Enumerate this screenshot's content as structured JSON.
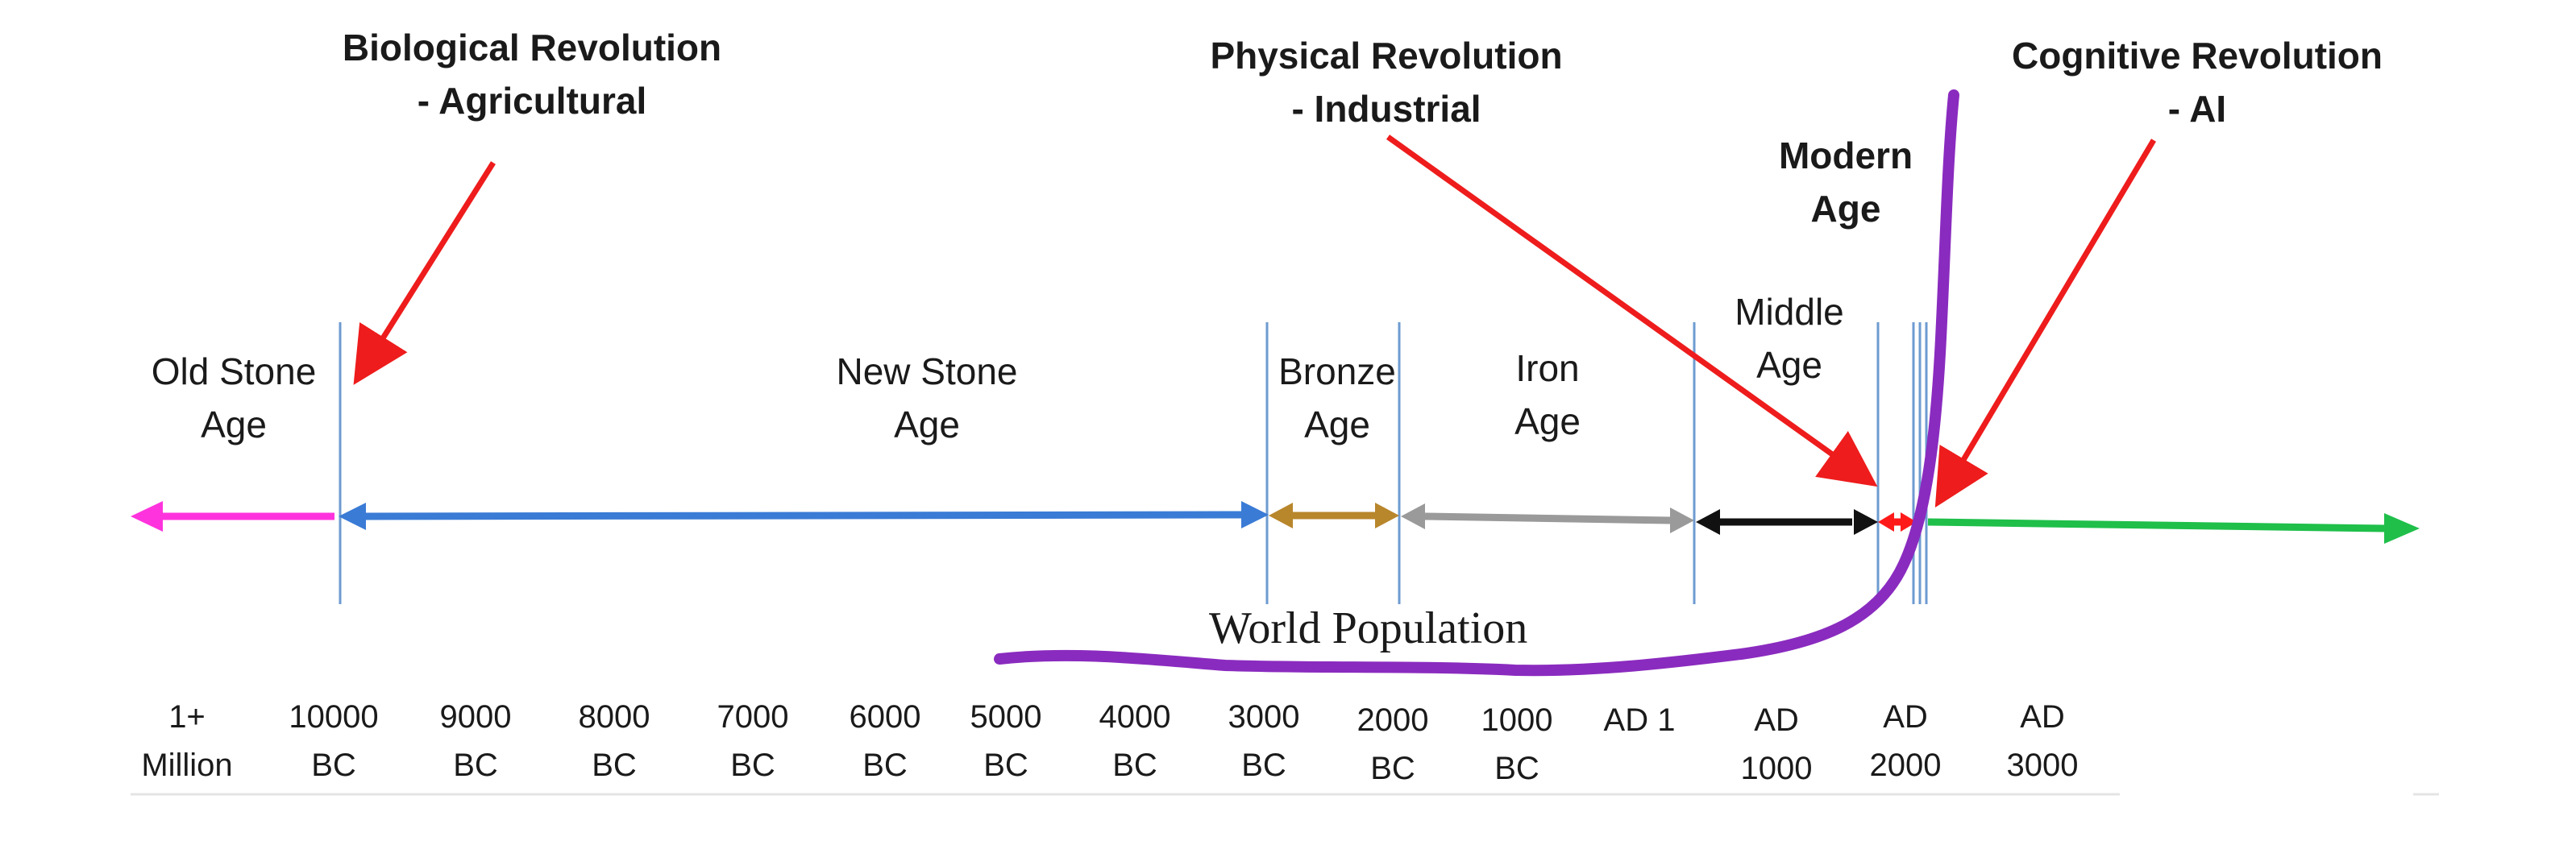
{
  "revolutions": {
    "biological": {
      "line1": "Biological Revolution",
      "line2": "- Agricultural"
    },
    "physical": {
      "line1": "Physical Revolution",
      "line2": "- Industrial"
    },
    "cognitive": {
      "line1": "Cognitive Revolution",
      "line2": "- AI"
    }
  },
  "ages": {
    "old_stone": {
      "line1": "Old Stone",
      "line2": "Age"
    },
    "new_stone": {
      "line1": "New Stone",
      "line2": "Age"
    },
    "bronze": {
      "line1": "Bronze",
      "line2": "Age"
    },
    "iron": {
      "line1": "Iron",
      "line2": "Age"
    },
    "middle": {
      "line1": "Middle",
      "line2": "Age"
    },
    "modern": {
      "line1": "Modern",
      "line2": "Age"
    }
  },
  "population_label": "World Population",
  "ticks": [
    {
      "line1": "1+",
      "line2": "Million"
    },
    {
      "line1": "10000",
      "line2": "BC"
    },
    {
      "line1": "9000",
      "line2": "BC"
    },
    {
      "line1": "8000",
      "line2": "BC"
    },
    {
      "line1": "7000",
      "line2": "BC"
    },
    {
      "line1": "6000",
      "line2": "BC"
    },
    {
      "line1": "5000",
      "line2": "BC"
    },
    {
      "line1": "4000",
      "line2": "BC"
    },
    {
      "line1": "3000",
      "line2": "BC"
    },
    {
      "line1": "2000",
      "line2": "BC"
    },
    {
      "line1": "1000",
      "line2": "BC"
    },
    {
      "line1": "AD 1",
      "line2": ""
    },
    {
      "line1": "AD",
      "line2": "1000"
    },
    {
      "line1": "AD",
      "line2": "2000"
    },
    {
      "line1": "AD",
      "line2": "3000"
    }
  ],
  "colors": {
    "old_stone_arrow": "#ff33dd",
    "new_stone_arrow": "#3a7bd5",
    "bronze_arrow": "#b8862b",
    "iron_arrow": "#9a9a9a",
    "middle_arrow": "#111111",
    "modern_arrow": "#ff1a1a",
    "future_arrow": "#1fbf4a",
    "population_curve": "#8a2bbf",
    "pointer_arrows": "#ee1c1c",
    "divider_lines": "#6e9bd1"
  }
}
